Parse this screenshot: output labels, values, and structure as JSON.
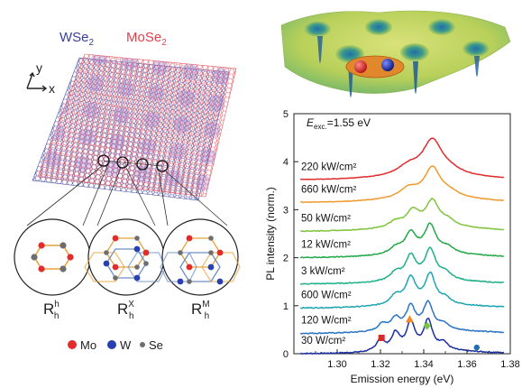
{
  "left_panel": {
    "wse2_label": "WSe",
    "mose2_label": "MoSe",
    "subscript_2": "2",
    "axis_y": "y",
    "axis_x": "x",
    "stackings": [
      {
        "main": "R",
        "sub": "h",
        "sup": "h"
      },
      {
        "main": "R",
        "sub": "h",
        "sup": "X"
      },
      {
        "main": "R",
        "sub": "h",
        "sup": "M"
      }
    ],
    "legend": [
      {
        "label": "Mo",
        "color": "#e32b2b"
      },
      {
        "label": "W",
        "color": "#2a3fb0"
      },
      {
        "label": "Se",
        "color": "#6e6e6e"
      }
    ]
  },
  "colors": {
    "wse2": "#4a4fa8",
    "mose2": "#e8505b",
    "potential_surface": "#c8d860",
    "exciton_blob": "#e0882b",
    "electron": "#d32a2a",
    "hole": "#1f3aa8"
  },
  "chart_data": {
    "type": "line",
    "xlabel": "Emission energy (eV)",
    "ylabel": "PL intensity (norm.)",
    "excitation": {
      "prefix": "E",
      "sub": "exc.",
      "suffix": "=1.55 eV"
    },
    "xlim": [
      1.28,
      1.38
    ],
    "ylim": [
      0,
      5
    ],
    "xticks": [
      "1.30",
      "1.32",
      "1.34",
      "1.36",
      "1.38"
    ],
    "yticks": [
      "0",
      "1",
      "2",
      "3",
      "4",
      "5"
    ],
    "series": [
      {
        "name": "30 W/cm²",
        "offset": 0.0,
        "color": "#1c2fa0",
        "noise": 0.012,
        "bg": 0.05,
        "peaks": [
          [
            1.32,
            0.26,
            0.0022
          ],
          [
            1.327,
            0.36,
            0.0022
          ],
          [
            1.334,
            0.58,
            0.0024
          ],
          [
            1.342,
            0.62,
            0.0024
          ],
          [
            1.349,
            0.16,
            0.0025
          ]
        ]
      },
      {
        "name": "120 W/cm²",
        "offset": 0.42,
        "color": "#2a74c4",
        "noise": 0.011,
        "bg": 0.06,
        "peaks": [
          [
            1.321,
            0.15,
            0.0025
          ],
          [
            1.327,
            0.25,
            0.0025
          ],
          [
            1.334,
            0.48,
            0.0026
          ],
          [
            1.342,
            0.56,
            0.0026
          ],
          [
            1.349,
            0.12,
            0.003
          ]
        ]
      },
      {
        "name": "600 W/cm²",
        "offset": 0.95,
        "color": "#1fa6b0",
        "noise": 0.01,
        "bg": 0.06,
        "peaks": [
          [
            1.327,
            0.2,
            0.003
          ],
          [
            1.334,
            0.55,
            0.0028
          ],
          [
            1.343,
            0.62,
            0.0028
          ],
          [
            1.35,
            0.12,
            0.003
          ]
        ]
      },
      {
        "name": "3 kW/cm²",
        "offset": 1.45,
        "color": "#1fb08a",
        "noise": 0.01,
        "bg": 0.06,
        "peaks": [
          [
            1.327,
            0.17,
            0.003
          ],
          [
            1.334,
            0.5,
            0.003
          ],
          [
            1.343,
            0.62,
            0.003
          ],
          [
            1.35,
            0.14,
            0.0035
          ]
        ]
      },
      {
        "name": "12 kW/cm²",
        "offset": 2.0,
        "color": "#24a84a",
        "noise": 0.009,
        "bg": 0.07,
        "peaks": [
          [
            1.327,
            0.13,
            0.0035
          ],
          [
            1.334,
            0.42,
            0.0032
          ],
          [
            1.343,
            0.58,
            0.0032
          ],
          [
            1.351,
            0.12,
            0.0035
          ]
        ]
      },
      {
        "name": "50 kW/cm²",
        "offset": 2.55,
        "color": "#80c43a",
        "noise": 0.008,
        "bg": 0.08,
        "peaks": [
          [
            1.327,
            0.12,
            0.0038
          ],
          [
            1.335,
            0.33,
            0.0036
          ],
          [
            1.344,
            0.52,
            0.0036
          ],
          [
            1.351,
            0.12,
            0.004
          ]
        ]
      },
      {
        "name": "660 kW/cm²",
        "offset": 3.15,
        "color": "#f09a2e",
        "noise": 0.006,
        "bg": 0.08,
        "peaks": [
          [
            1.333,
            0.2,
            0.005
          ],
          [
            1.344,
            0.62,
            0.0045
          ],
          [
            1.352,
            0.1,
            0.005
          ]
        ]
      },
      {
        "name": "220 kW/cm²",
        "offset": 3.62,
        "color": "#e22c2c",
        "noise": 0.005,
        "bg": 0.08,
        "peaks": [
          [
            1.333,
            0.18,
            0.006
          ],
          [
            1.344,
            0.72,
            0.0055
          ],
          [
            1.352,
            0.08,
            0.006
          ]
        ]
      }
    ],
    "markers": [
      {
        "shape": "square",
        "x": 1.3205,
        "y": 0.33,
        "color": "#d42a2a"
      },
      {
        "shape": "triangle",
        "x": 1.3335,
        "y": 0.72,
        "color": "#f08a2a"
      },
      {
        "shape": "diamond",
        "x": 1.3415,
        "y": 0.58,
        "color": "#7ac43a"
      },
      {
        "shape": "circle",
        "x": 1.3645,
        "y": 0.13,
        "color": "#1f6fb0"
      }
    ]
  }
}
